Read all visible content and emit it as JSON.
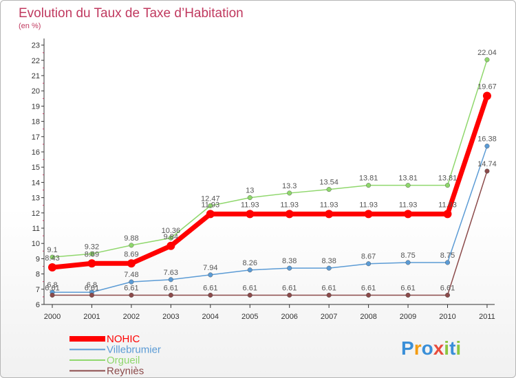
{
  "chart_data": {
    "type": "line",
    "title": "Evolution du Taux de Taxe d’Habitation",
    "subtitle": "(en %)",
    "categories": [
      "2000",
      "2001",
      "2002",
      "2003",
      "2004",
      "2005",
      "2006",
      "2007",
      "2008",
      "2009",
      "2010",
      "2011"
    ],
    "ylim": [
      6,
      23
    ],
    "yticks": [
      "6",
      "7",
      "8",
      "9",
      "10",
      "11",
      "12",
      "13",
      "14",
      "15",
      "16",
      "17",
      "18",
      "19",
      "20",
      "21",
      "22",
      "23"
    ],
    "grid": false,
    "legend_position": "bottom-left",
    "series": [
      {
        "name": "Villebrumier",
        "color": "#5b9bd5",
        "values": [
          6.8,
          6.8,
          7.48,
          7.63,
          7.94,
          8.26,
          8.38,
          8.38,
          8.67,
          8.75,
          8.75,
          16.38
        ],
        "labels": [
          "6.8",
          "6.8",
          "7.48",
          "7.63",
          "7.94",
          "8.26",
          "8.38",
          "8.38",
          "8.67",
          "8.75",
          "8.75",
          "16.38"
        ]
      },
      {
        "name": "Reyniès",
        "color": "#8b4a4a",
        "values": [
          6.61,
          6.61,
          6.61,
          6.61,
          6.61,
          6.61,
          6.61,
          6.61,
          6.61,
          6.61,
          6.61,
          14.74
        ],
        "labels": [
          "6.61",
          "6.61",
          "6.61",
          "6.61",
          "6.61",
          "6.61",
          "6.61",
          "6.61",
          "6.61",
          "6.61",
          "6.61",
          "14.74"
        ]
      },
      {
        "name": "Orgueil",
        "color": "#8fd76c",
        "values": [
          9.1,
          9.32,
          9.88,
          10.36,
          12.47,
          13,
          13.3,
          13.54,
          13.81,
          13.81,
          13.81,
          22.04
        ],
        "labels": [
          "9.1",
          "9.32",
          "9.88",
          "10.36",
          "12.47",
          "13",
          "13.3",
          "13.54",
          "13.81",
          "13.81",
          "13.81",
          "22.04"
        ]
      },
      {
        "name": "NOHIC",
        "color": "#ff0000",
        "values": [
          8.43,
          8.69,
          8.69,
          9.84,
          11.93,
          11.93,
          11.93,
          11.93,
          11.93,
          11.93,
          11.93,
          19.67
        ],
        "labels": [
          "8.43",
          "8.69",
          "8.69",
          "9.84",
          "11.93",
          "11.93",
          "11.93",
          "11.93",
          "11.93",
          "11.93",
          "11.93",
          "19.67"
        ]
      }
    ],
    "legend": [
      {
        "name": "NOHIC",
        "color": "#ff0000"
      },
      {
        "name": "Villebrumier",
        "color": "#5b9bd5"
      },
      {
        "name": "Orgueil",
        "color": "#8fd76c"
      },
      {
        "name": "Reyniès",
        "color": "#8b4a4a"
      }
    ]
  },
  "logo": {
    "letters": [
      "P",
      "r",
      "o",
      "x",
      "i",
      "t",
      "i"
    ],
    "colors": [
      "#3a8fd8",
      "#f39c12",
      "#3a8fd8",
      "#e84c3d",
      "#8cc63f",
      "#3a8fd8",
      "#8cc63f"
    ]
  }
}
